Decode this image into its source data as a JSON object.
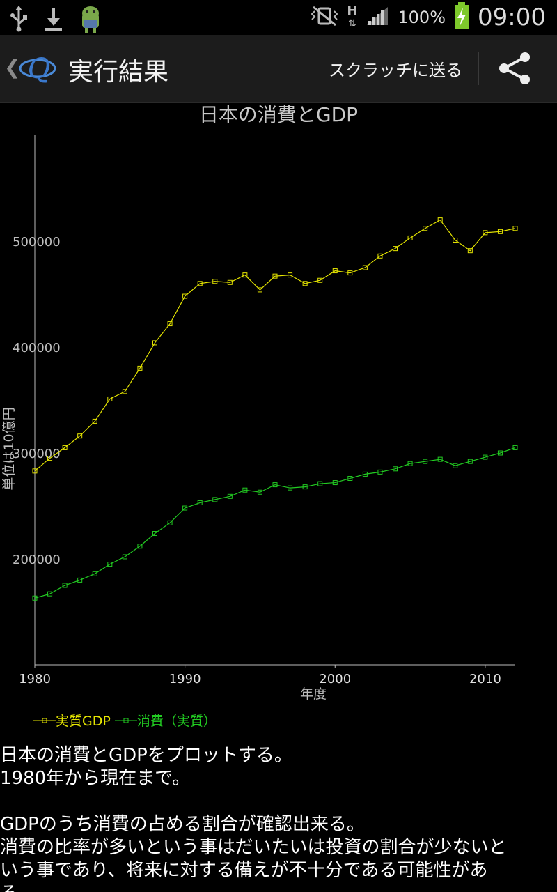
{
  "status_bar": {
    "battery_percent": "100%",
    "clock": "09:00",
    "network_type": "H"
  },
  "action_bar": {
    "title": "実行結果",
    "send_label": "スクラッチに送る"
  },
  "chart_data": {
    "type": "line",
    "title": "日本の消費とGDP",
    "xlabel": "年度",
    "ylabel": "単位は10億円",
    "xlim": [
      1980,
      2012
    ],
    "ylim": [
      100000,
      600000
    ],
    "x_ticks": [
      1980,
      1990,
      2000,
      2010
    ],
    "y_ticks": [
      200000,
      300000,
      400000,
      500000
    ],
    "x_tick_labels": [
      "1980",
      "1990",
      "2000",
      "2010"
    ],
    "y_tick_labels": [
      "200000",
      "300000",
      "400000",
      "500000"
    ],
    "x": [
      1980,
      1981,
      1982,
      1983,
      1984,
      1985,
      1986,
      1987,
      1988,
      1989,
      1990,
      1991,
      1992,
      1993,
      1994,
      1995,
      1996,
      1997,
      1998,
      1999,
      2000,
      2001,
      2002,
      2003,
      2004,
      2005,
      2006,
      2007,
      2008,
      2009,
      2010,
      2011,
      2012
    ],
    "series": [
      {
        "name": "実質GDP",
        "color": "#e6e600",
        "values": [
          283000,
          295000,
          305000,
          316000,
          330000,
          351000,
          358000,
          380000,
          404000,
          422000,
          448000,
          460000,
          462000,
          461000,
          468000,
          454000,
          467000,
          468000,
          460000,
          463000,
          472000,
          470000,
          475000,
          486000,
          493000,
          503000,
          512000,
          520000,
          501000,
          491000,
          508000,
          509000,
          512000
        ]
      },
      {
        "name": "消費（実質）",
        "color": "#22cc22",
        "values": [
          163000,
          167000,
          175000,
          180000,
          186000,
          195000,
          202000,
          212000,
          224000,
          234000,
          248000,
          253000,
          256000,
          259000,
          265000,
          263000,
          270000,
          267000,
          268000,
          271000,
          272000,
          276000,
          280000,
          282000,
          285000,
          290000,
          292000,
          294000,
          288000,
          292000,
          296000,
          300000,
          305000
        ]
      }
    ],
    "legend": "bottom-left",
    "grid": false
  },
  "description": {
    "line1": "日本の消費とGDPをプロットする。",
    "line2": "1980年から現在まで。",
    "line3": "GDPのうち消費の占める割合が確認出来る。",
    "line4": "消費の比率が多いという事はだいたいは投資の割合が少ないと",
    "line5": "いう事であり、将来に対する備えが不十分である可能性があ",
    "line6": "る。"
  }
}
